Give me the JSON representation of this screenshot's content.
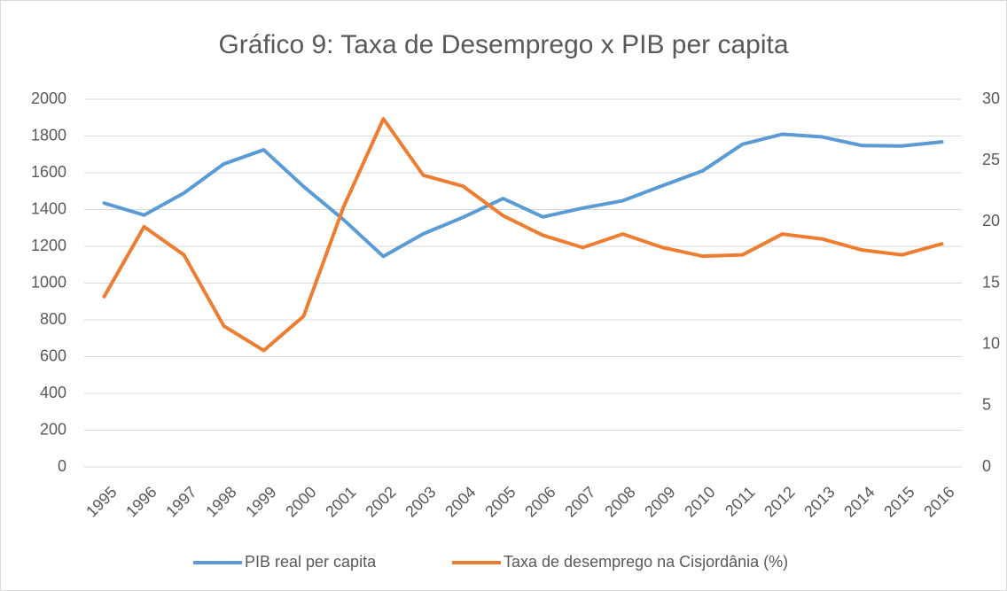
{
  "chart_data": {
    "type": "line",
    "title": "Gráfico 9: Taxa de Desemprego x PIB per capita",
    "categories": [
      "1995",
      "1996",
      "1997",
      "1998",
      "1999",
      "2000",
      "2001",
      "2002",
      "2003",
      "2004",
      "2005",
      "2006",
      "2007",
      "2008",
      "2009",
      "2010",
      "2011",
      "2012",
      "2013",
      "2014",
      "2015",
      "2016"
    ],
    "series": [
      {
        "name": "PIB real per capita",
        "color": "#5b9bd5",
        "values": [
          1435,
          1370,
          1490,
          1648,
          1725,
          1525,
          1345,
          1145,
          1268,
          1358,
          1460,
          1360,
          1408,
          1448,
          1530,
          1610,
          1755,
          1810,
          1795,
          1748,
          1746,
          1768
        ]
      },
      {
        "name": "Taxa de desemprego na Cisjordânia (%)",
        "color": "#ed7d31",
        "axis": "y2",
        "values": [
          13.9,
          19.6,
          17.3,
          11.5,
          9.5,
          12.3,
          21.2,
          28.4,
          23.8,
          22.9,
          20.5,
          18.9,
          17.9,
          19.0,
          17.9,
          17.2,
          17.3,
          19.0,
          18.6,
          17.7,
          17.3,
          18.2
        ]
      }
    ],
    "ylim": [
      0,
      2000
    ],
    "yticks": [
      0,
      200,
      400,
      600,
      800,
      1000,
      1200,
      1400,
      1600,
      1800,
      2000
    ],
    "y2lim": [
      0,
      30
    ],
    "y2ticks": [
      0,
      5,
      10,
      15,
      20,
      25,
      30
    ],
    "grid": true,
    "legend": "bottom"
  }
}
